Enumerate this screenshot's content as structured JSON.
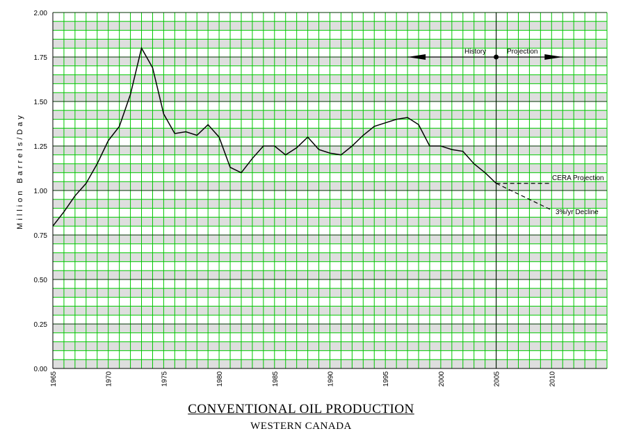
{
  "chart_data": {
    "type": "line",
    "title": "CONVENTIONAL OIL PRODUCTION",
    "subtitle": "WESTERN CANADA",
    "ylabel": "Million Barrels/Day",
    "xlabel": "",
    "xlim": [
      1965,
      2015
    ],
    "ylim": [
      0,
      2.0
    ],
    "x_ticks": [
      1965,
      1970,
      1975,
      1980,
      1985,
      1990,
      1995,
      2000,
      2005,
      2010
    ],
    "x_tick_labels": [
      "1965",
      "1970",
      "1975",
      "1980",
      "1985",
      "1990",
      "1995",
      "2000",
      "2005",
      "2010"
    ],
    "y_ticks": [
      0,
      0.25,
      0.5,
      0.75,
      1.0,
      1.25,
      1.5,
      1.75,
      2.0
    ],
    "y_tick_labels": [
      "0.00",
      "0.25",
      "0.50",
      "0.75",
      "1.00",
      "1.25",
      "1.50",
      "1.75",
      "2.00"
    ],
    "grid": true,
    "series": [
      {
        "style": "solid",
        "x": [
          1965,
          1966,
          1967,
          1968,
          1969,
          1970,
          1971,
          1972,
          1973,
          1974,
          1975,
          1976,
          1977,
          1978,
          1979,
          1980,
          1981,
          1982,
          1983,
          1984,
          1985,
          1986,
          1987,
          1988,
          1989,
          1990,
          1991,
          1992,
          1993,
          1994,
          1995,
          1996,
          1997,
          1998,
          1999,
          2000,
          2001,
          2002,
          2003,
          2004,
          2005
        ],
        "y": [
          0.8,
          0.88,
          0.97,
          1.04,
          1.15,
          1.28,
          1.36,
          1.54,
          1.8,
          1.69,
          1.43,
          1.32,
          1.33,
          1.31,
          1.37,
          1.3,
          1.13,
          1.1,
          1.18,
          1.25,
          1.25,
          1.2,
          1.24,
          1.3,
          1.23,
          1.21,
          1.2,
          1.25,
          1.31,
          1.36,
          1.38,
          1.4,
          1.41,
          1.37,
          1.25,
          1.25,
          1.23,
          1.22,
          1.15,
          1.1,
          1.04
        ]
      },
      {
        "name": "CERA Projection",
        "style": "dashed",
        "x": [
          2005,
          2010
        ],
        "y": [
          1.04,
          1.04
        ]
      },
      {
        "name": "3%/yr Decline",
        "style": "dashed",
        "x": [
          2005,
          2010
        ],
        "y": [
          1.04,
          0.89
        ]
      }
    ],
    "annotations": {
      "history_label": "History",
      "projection_label": "Projection",
      "divider_year": 2005,
      "arrow_y": 1.75,
      "arrow_x_start": 1997,
      "arrow_x_end": 2011
    }
  }
}
